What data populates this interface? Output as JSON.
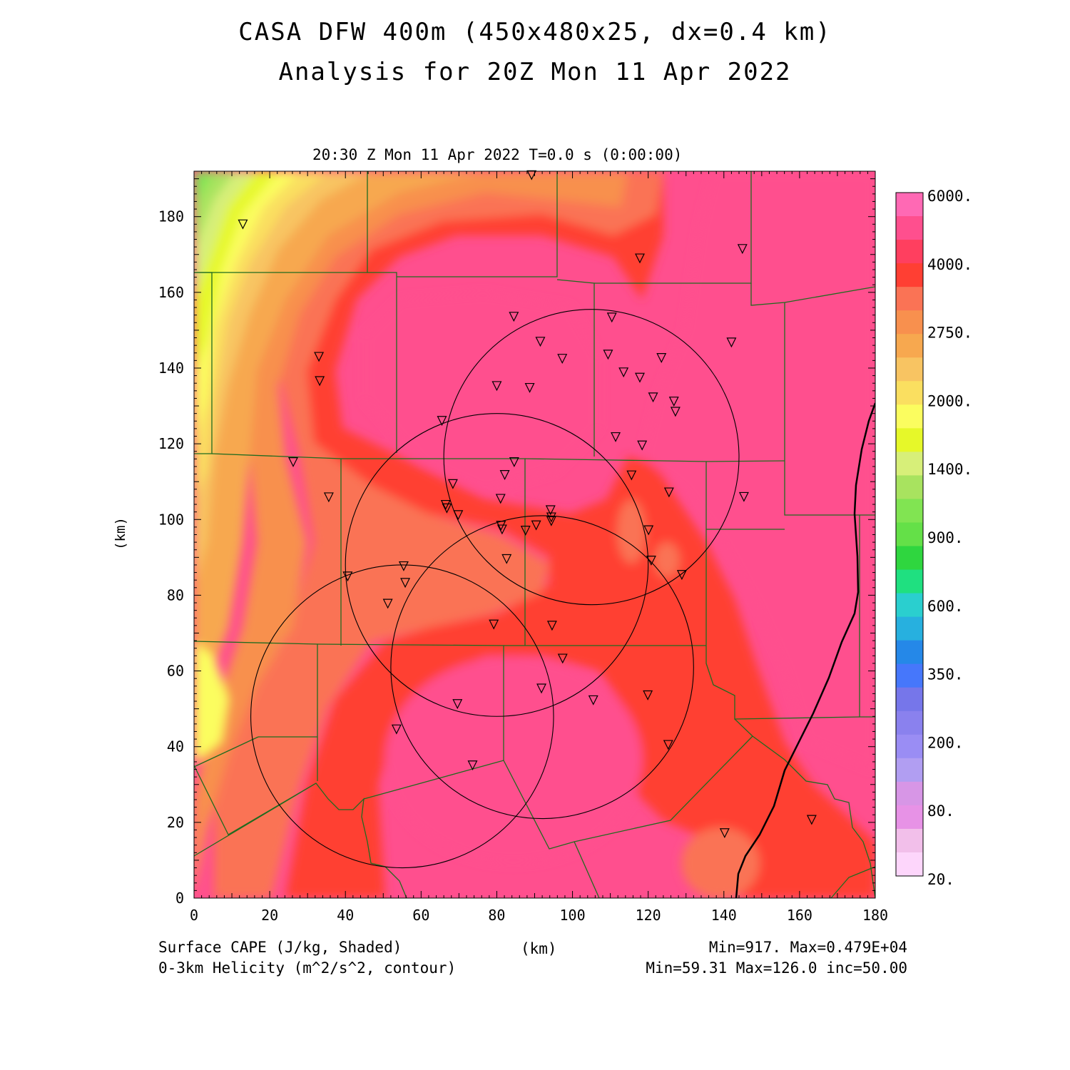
{
  "title_line1": "CASA DFW 400m (450x480x25, dx=0.4 km)",
  "title_line2": "Analysis for 20Z Mon 11 Apr 2022",
  "time_label": "20:30 Z Mon 11 Apr 2022   T=0.0 s (0:00:00)",
  "footer": {
    "left1": "Surface CAPE (J/kg, Shaded)",
    "left2": "0-3km Helicity (m^2/s^2, contour)",
    "center": "(km)",
    "right1": "Min=917. Max=0.479E+04",
    "right2": "Min=59.31 Max=126.0 inc=50.00"
  },
  "map": {
    "x_ticks": [
      0,
      20,
      40,
      60,
      80,
      100,
      120,
      140,
      160,
      180
    ],
    "y_ticks": [
      0,
      20,
      40,
      60,
      80,
      100,
      120,
      140,
      160,
      180
    ],
    "y_label": "(km)",
    "x_range": [
      0,
      180
    ],
    "y_range": [
      0,
      192
    ],
    "helicity_circles": [
      {
        "cx": 105,
        "cy": 116.5,
        "r": 39
      },
      {
        "cx": 80,
        "cy": 88,
        "r": 40
      },
      {
        "cx": 92,
        "cy": 61,
        "r": 40
      },
      {
        "cx": 55,
        "cy": 48,
        "r": 40
      }
    ],
    "stations": [
      [
        12.9,
        178
      ],
      [
        89.2,
        191
      ],
      [
        117.8,
        169
      ],
      [
        144.9,
        171.5
      ],
      [
        84.5,
        153.6
      ],
      [
        110.4,
        153.4
      ],
      [
        91.5,
        147
      ],
      [
        97.3,
        142.5
      ],
      [
        109.4,
        143.6
      ],
      [
        123.5,
        142.7
      ],
      [
        33,
        143
      ],
      [
        33.2,
        136.6
      ],
      [
        80,
        135.3
      ],
      [
        88.7,
        134.8
      ],
      [
        113.5,
        138.9
      ],
      [
        117.8,
        137.5
      ],
      [
        121.3,
        132.3
      ],
      [
        126.8,
        131.2
      ],
      [
        127.2,
        128.5
      ],
      [
        65.5,
        126.1
      ],
      [
        111.4,
        121.8
      ],
      [
        118.4,
        119.6
      ],
      [
        142,
        146.8
      ],
      [
        26.2,
        115.2
      ],
      [
        84.6,
        115.2
      ],
      [
        82.1,
        111.8
      ],
      [
        115.6,
        111.7
      ],
      [
        68.4,
        109.4
      ],
      [
        35.6,
        105.9
      ],
      [
        81,
        105.5
      ],
      [
        66.5,
        103.9
      ],
      [
        66.8,
        103
      ],
      [
        69.8,
        101.2
      ],
      [
        94.2,
        102.5
      ],
      [
        94.4,
        100.6
      ],
      [
        94.4,
        99.6
      ],
      [
        90.4,
        98.5
      ],
      [
        125.5,
        107.2
      ],
      [
        145.3,
        106
      ],
      [
        81.1,
        98.4
      ],
      [
        81.4,
        97.4
      ],
      [
        87.6,
        97.1
      ],
      [
        120.1,
        97.2
      ],
      [
        82.6,
        89.6
      ],
      [
        120.8,
        89.2
      ],
      [
        55.4,
        87.7
      ],
      [
        40.6,
        85
      ],
      [
        55.8,
        83.3
      ],
      [
        128.9,
        85.4
      ],
      [
        51.2,
        77.8
      ],
      [
        79.2,
        72.3
      ],
      [
        94.6,
        72
      ],
      [
        97.4,
        63.3
      ],
      [
        91.8,
        55.4
      ],
      [
        119.9,
        53.6
      ],
      [
        69.6,
        51.3
      ],
      [
        105.5,
        52.3
      ],
      [
        53.5,
        44.6
      ],
      [
        125.3,
        40.5
      ],
      [
        73.6,
        35.1
      ],
      [
        140.2,
        17.2
      ],
      [
        163.2,
        20.7
      ]
    ]
  },
  "colorbar": {
    "labels": [
      "6000.",
      "4000.",
      "2750.",
      "2000.",
      "1400.",
      "900.",
      "600.",
      "350.",
      "200.",
      "80.",
      "20."
    ],
    "colors": [
      "#ff69b4",
      "#ff4f8e",
      "#ff3f5f",
      "#ff3f33",
      "#fa7355",
      "#f8904e",
      "#f7a84f",
      "#f8c462",
      "#fadf60",
      "#fbfd5f",
      "#e6f829",
      "#d7ef79",
      "#a8e35f",
      "#81e452",
      "#64e048",
      "#2fd63f",
      "#1fe080",
      "#2acfcf",
      "#27b0df",
      "#2588e8",
      "#4677fb",
      "#7676ea",
      "#8a81ee",
      "#9a8df4",
      "#b19ef2",
      "#d796e6",
      "#e792e6",
      "#f2bfea",
      "#fdd6fb"
    ]
  }
}
